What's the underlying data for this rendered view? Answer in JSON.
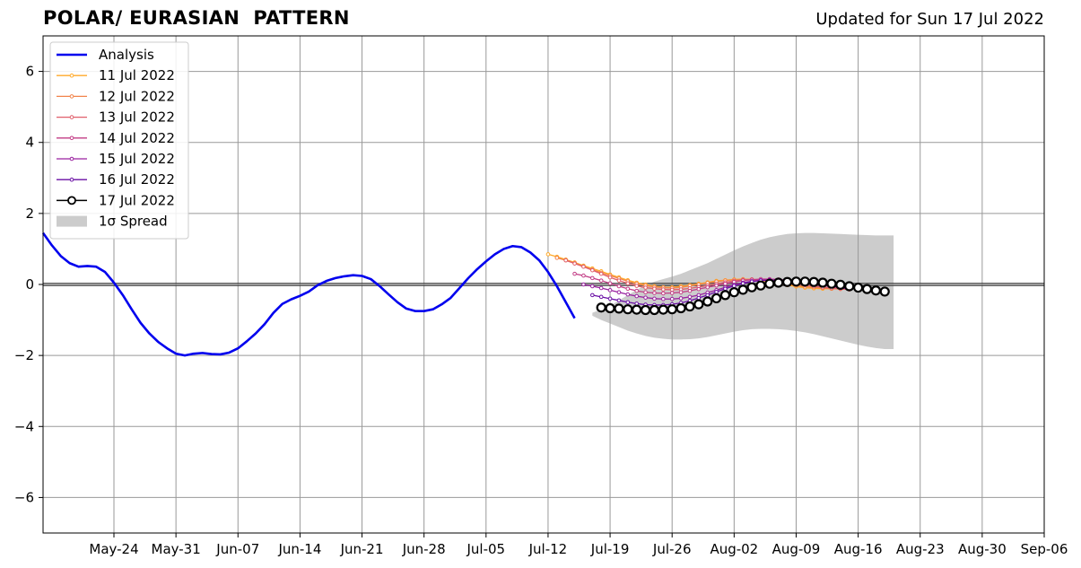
{
  "header": {
    "title": "POLAR/ EURASIAN  PATTERN",
    "updated": "Updated for Sun 17 Jul 2022"
  },
  "chart_data": {
    "type": "line",
    "title": "POLAR/ EURASIAN  PATTERN",
    "subtitle": "Updated for Sun 17 Jul 2022",
    "xlabel": "",
    "ylabel": "",
    "x_axis": "dates",
    "xlim": [
      "2022-05-16",
      "2022-09-06"
    ],
    "ylim": [
      -7,
      7
    ],
    "grid": true,
    "legend_position": "upper-left",
    "xticks": [
      "May-24",
      "May-31",
      "Jun-07",
      "Jun-14",
      "Jun-21",
      "Jun-28",
      "Jul-05",
      "Jul-12",
      "Jul-19",
      "Jul-26",
      "Aug-02",
      "Aug-09",
      "Aug-16",
      "Aug-23",
      "Aug-30",
      "Sep-06"
    ],
    "xtick_dates": [
      "2022-05-24",
      "2022-05-31",
      "2022-06-07",
      "2022-06-14",
      "2022-06-21",
      "2022-06-28",
      "2022-07-05",
      "2022-07-12",
      "2022-07-19",
      "2022-07-26",
      "2022-08-02",
      "2022-08-09",
      "2022-08-16",
      "2022-08-23",
      "2022-08-30",
      "2022-09-06"
    ],
    "yticks": [
      -6,
      -4,
      -2,
      0,
      2,
      4,
      6
    ],
    "ytick_labels": [
      "−6",
      "−4",
      "−2",
      "0",
      "2",
      "4",
      "6"
    ],
    "analysis": {
      "name": "Analysis",
      "color": "#0000ee",
      "start": "2022-05-16",
      "values": [
        1.45,
        1.1,
        0.8,
        0.6,
        0.5,
        0.52,
        0.5,
        0.35,
        0.05,
        -0.3,
        -0.7,
        -1.08,
        -1.38,
        -1.62,
        -1.8,
        -1.95,
        -2.0,
        -1.95,
        -1.93,
        -1.96,
        -1.97,
        -1.92,
        -1.8,
        -1.6,
        -1.38,
        -1.12,
        -0.8,
        -0.55,
        -0.42,
        -0.32,
        -0.2,
        -0.02,
        0.1,
        0.18,
        0.23,
        0.26,
        0.24,
        0.15,
        -0.05,
        -0.28,
        -0.5,
        -0.68,
        -0.75,
        -0.75,
        -0.7,
        -0.56,
        -0.38,
        -0.1,
        0.18,
        0.43,
        0.65,
        0.85,
        1.0,
        1.08,
        1.05,
        0.9,
        0.68,
        0.35,
        -0.05,
        -0.5,
        -0.95
      ]
    },
    "spread": {
      "name": "1σ Spread",
      "color": "#cccccc",
      "start": "2022-07-17",
      "upper": [
        -0.8,
        -0.7,
        -0.6,
        -0.45,
        -0.3,
        -0.15,
        -0.02,
        0.08,
        0.15,
        0.22,
        0.3,
        0.4,
        0.5,
        0.6,
        0.72,
        0.84,
        0.96,
        1.07,
        1.17,
        1.26,
        1.33,
        1.38,
        1.42,
        1.44,
        1.45,
        1.45,
        1.44,
        1.43,
        1.42,
        1.41,
        1.4,
        1.39,
        1.38,
        1.38,
        1.38
      ],
      "lower": [
        -0.88,
        -1.0,
        -1.1,
        -1.2,
        -1.3,
        -1.38,
        -1.45,
        -1.5,
        -1.53,
        -1.55,
        -1.55,
        -1.54,
        -1.52,
        -1.48,
        -1.43,
        -1.38,
        -1.33,
        -1.29,
        -1.26,
        -1.25,
        -1.25,
        -1.26,
        -1.28,
        -1.31,
        -1.35,
        -1.4,
        -1.46,
        -1.52,
        -1.58,
        -1.64,
        -1.7,
        -1.75,
        -1.79,
        -1.82,
        -1.82
      ]
    },
    "series": [
      {
        "name": "11 Jul 2022",
        "color": "#ffaa2a",
        "start": "2022-07-12",
        "values": [
          0.85,
          0.78,
          0.7,
          0.62,
          0.53,
          0.45,
          0.37,
          0.28,
          0.2,
          0.12,
          0.05,
          0.0,
          -0.05,
          -0.08,
          -0.08,
          -0.05,
          -0.02,
          0.02,
          0.06,
          0.1,
          0.12,
          0.14,
          0.15,
          0.14,
          0.11,
          0.07,
          0.02,
          -0.02,
          -0.06,
          -0.09,
          -0.11,
          -0.12,
          -0.12,
          -0.12,
          -0.13
        ]
      },
      {
        "name": "12 Jul 2022",
        "color": "#f2844b",
        "start": "2022-07-13",
        "values": [
          0.75,
          0.68,
          0.6,
          0.51,
          0.42,
          0.33,
          0.25,
          0.17,
          0.09,
          0.02,
          -0.03,
          -0.07,
          -0.09,
          -0.1,
          -0.08,
          -0.04,
          0.0,
          0.04,
          0.08,
          0.11,
          0.13,
          0.14,
          0.14,
          0.12,
          0.09,
          0.05,
          0.01,
          -0.03,
          -0.06,
          -0.08,
          -0.1,
          -0.12,
          -0.13,
          -0.14
        ]
      },
      {
        "name": "13 Jul 2022",
        "color": "#e05f6b",
        "start": "2022-07-14",
        "values": [
          0.68,
          0.59,
          0.5,
          0.4,
          0.3,
          0.2,
          0.11,
          0.03,
          -0.04,
          -0.09,
          -0.12,
          -0.14,
          -0.15,
          -0.14,
          -0.11,
          -0.07,
          -0.03,
          0.02,
          0.06,
          0.1,
          0.13,
          0.14,
          0.14,
          0.13,
          0.1,
          0.06,
          0.02,
          -0.02,
          -0.05,
          -0.08,
          -0.1,
          -0.12,
          -0.14
        ]
      },
      {
        "name": "14 Jul 2022",
        "color": "#c23d86",
        "start": "2022-07-15",
        "values": [
          0.3,
          0.25,
          0.18,
          0.11,
          0.03,
          -0.05,
          -0.12,
          -0.18,
          -0.22,
          -0.24,
          -0.25,
          -0.24,
          -0.22,
          -0.18,
          -0.13,
          -0.08,
          -0.03,
          0.02,
          0.07,
          0.11,
          0.13,
          0.15,
          0.15,
          0.14,
          0.12,
          0.09,
          0.05,
          0.01,
          -0.03,
          -0.06,
          -0.09,
          -0.12
        ]
      },
      {
        "name": "15 Jul 2022",
        "color": "#9a22a0",
        "start": "2022-07-16",
        "values": [
          0.0,
          -0.05,
          -0.1,
          -0.16,
          -0.22,
          -0.28,
          -0.33,
          -0.37,
          -0.4,
          -0.41,
          -0.41,
          -0.39,
          -0.35,
          -0.3,
          -0.23,
          -0.16,
          -0.08,
          -0.01,
          0.05,
          0.09,
          0.12,
          0.13,
          0.13,
          0.12,
          0.1,
          0.07,
          0.04,
          0.0,
          -0.04,
          -0.08,
          -0.12
        ]
      },
      {
        "name": "16 Jul 2022",
        "color": "#6a0fa5",
        "start": "2022-07-17",
        "values": [
          -0.3,
          -0.35,
          -0.4,
          -0.45,
          -0.5,
          -0.54,
          -0.57,
          -0.58,
          -0.58,
          -0.56,
          -0.52,
          -0.46,
          -0.38,
          -0.3,
          -0.21,
          -0.12,
          -0.04,
          0.03,
          0.08,
          0.11,
          0.12,
          0.12,
          0.11,
          0.09,
          0.06,
          0.03,
          -0.01,
          -0.05,
          -0.09,
          -0.13
        ]
      },
      {
        "name": "17 Jul 2022",
        "color": "#000000",
        "start": "2022-07-18",
        "marker": "open-circle",
        "values": [
          -0.65,
          -0.67,
          -0.68,
          -0.7,
          -0.71,
          -0.72,
          -0.72,
          -0.71,
          -0.7,
          -0.67,
          -0.62,
          -0.56,
          -0.48,
          -0.39,
          -0.3,
          -0.22,
          -0.15,
          -0.08,
          -0.03,
          0.02,
          0.05,
          0.07,
          0.08,
          0.08,
          0.07,
          0.05,
          0.02,
          -0.01,
          -0.05,
          -0.09,
          -0.13,
          -0.17,
          -0.2
        ]
      }
    ]
  }
}
